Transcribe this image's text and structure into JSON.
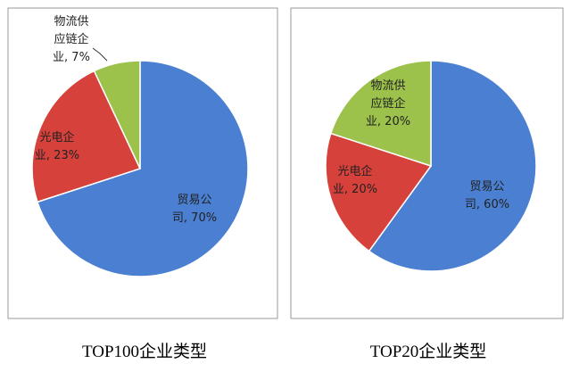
{
  "chart_data": [
    {
      "type": "pie",
      "caption": "TOP100企业类型",
      "values": [
        70,
        23,
        7
      ],
      "value_labels": [
        "贸易公司, 70%",
        "光电企业, 23%",
        "物流供应链企业, 7%"
      ],
      "colors": [
        "#4a7fd1",
        "#d7413b",
        "#9cc24c"
      ]
    },
    {
      "type": "pie",
      "caption": "TOP20企业类型",
      "values": [
        60,
        20,
        20
      ],
      "value_labels": [
        "贸易公司, 60%",
        "光电企业, 20%",
        "物流供应链企业, 20%"
      ],
      "colors": [
        "#4a7fd1",
        "#d7413b",
        "#9cc24c"
      ]
    }
  ]
}
